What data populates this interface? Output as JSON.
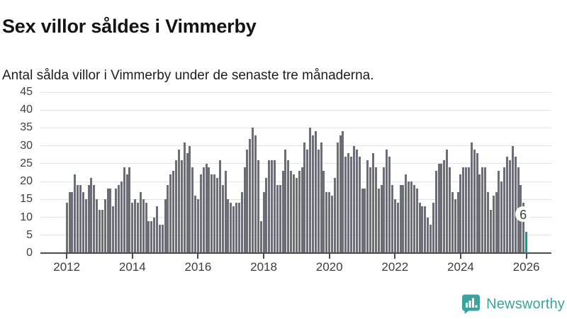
{
  "title": "Sex villor såldes i Vimmerby",
  "subtitle": "Antal sålda villor i Vimmerby under de senaste tre månaderna.",
  "branding": {
    "name": "Newsworthy",
    "icon": "newsworthy-speech-bubble-chart-icon",
    "color": "#3ba39d"
  },
  "chart_data": {
    "type": "bar",
    "title": "Sex villor såldes i Vimmerby",
    "subtitle": "Antal sålda villor i Vimmerby under de senaste tre månaderna.",
    "x_start": "2012-01",
    "x_interval": "month",
    "ylim": [
      0,
      45
    ],
    "y_ticks": [
      0,
      5,
      10,
      15,
      20,
      25,
      30,
      35,
      40,
      45
    ],
    "x_tick_labels": [
      "2012",
      "2014",
      "2016",
      "2018",
      "2020",
      "2022",
      "2024",
      "2026"
    ],
    "x_tick_month_indices": [
      0,
      24,
      48,
      72,
      96,
      120,
      144,
      168
    ],
    "grid": "horizontal",
    "legend": "none",
    "bar_color": "#6b6e76",
    "grid_color": "#e2e2e2",
    "axis_color": "#4c4c4c",
    "tick_label_color": "#3d3d3d",
    "values_by_year": {
      "2012": [
        14,
        17,
        17,
        22,
        19,
        19,
        17,
        15,
        19,
        21,
        19,
        15
      ],
      "2013": [
        12,
        12,
        15,
        18,
        18,
        13,
        18,
        19,
        20,
        24,
        22,
        24
      ],
      "2014": [
        14,
        15,
        14,
        17,
        15,
        14,
        9,
        9,
        10,
        13,
        8,
        8
      ],
      "2015": [
        15,
        19,
        22,
        23,
        26,
        29,
        26,
        31,
        28,
        30,
        24,
        16
      ],
      "2016": [
        15,
        22,
        24,
        25,
        24,
        22,
        22,
        21,
        26,
        19,
        23,
        15
      ],
      "2017": [
        14,
        13,
        14,
        14,
        17,
        24,
        29,
        32,
        35,
        33,
        26,
        9
      ],
      "2018": [
        17,
        21,
        26,
        26,
        26,
        19,
        19,
        23,
        29,
        26,
        23,
        22
      ],
      "2019": [
        21,
        23,
        24,
        31,
        29,
        35,
        33,
        34,
        29,
        31,
        23,
        17
      ],
      "2020": [
        17,
        16,
        21,
        31,
        33,
        34,
        27,
        28,
        27,
        30,
        29,
        27
      ],
      "2021": [
        18,
        18,
        26,
        24,
        28,
        24,
        18,
        19,
        24,
        29,
        27,
        19
      ],
      "2022": [
        15,
        14,
        19,
        19,
        22,
        20,
        20,
        19,
        18,
        14,
        13,
        13
      ],
      "2023": [
        10,
        8,
        14,
        23,
        25,
        25,
        26,
        29,
        24,
        17,
        15,
        17
      ],
      "2024": [
        22,
        24,
        24,
        24,
        31,
        29,
        28,
        22,
        24,
        24,
        17,
        12
      ],
      "2025": [
        16,
        17,
        23,
        20,
        24,
        27,
        26,
        30,
        27,
        24,
        19,
        14
      ]
    },
    "year_order": [
      "2012",
      "2013",
      "2014",
      "2015",
      "2016",
      "2017",
      "2018",
      "2019",
      "2020",
      "2021",
      "2022",
      "2023",
      "2024",
      "2025"
    ],
    "highlight": {
      "label": "6",
      "value": 6,
      "month_index": 168,
      "position": "2026",
      "color": "#00a09f"
    }
  }
}
